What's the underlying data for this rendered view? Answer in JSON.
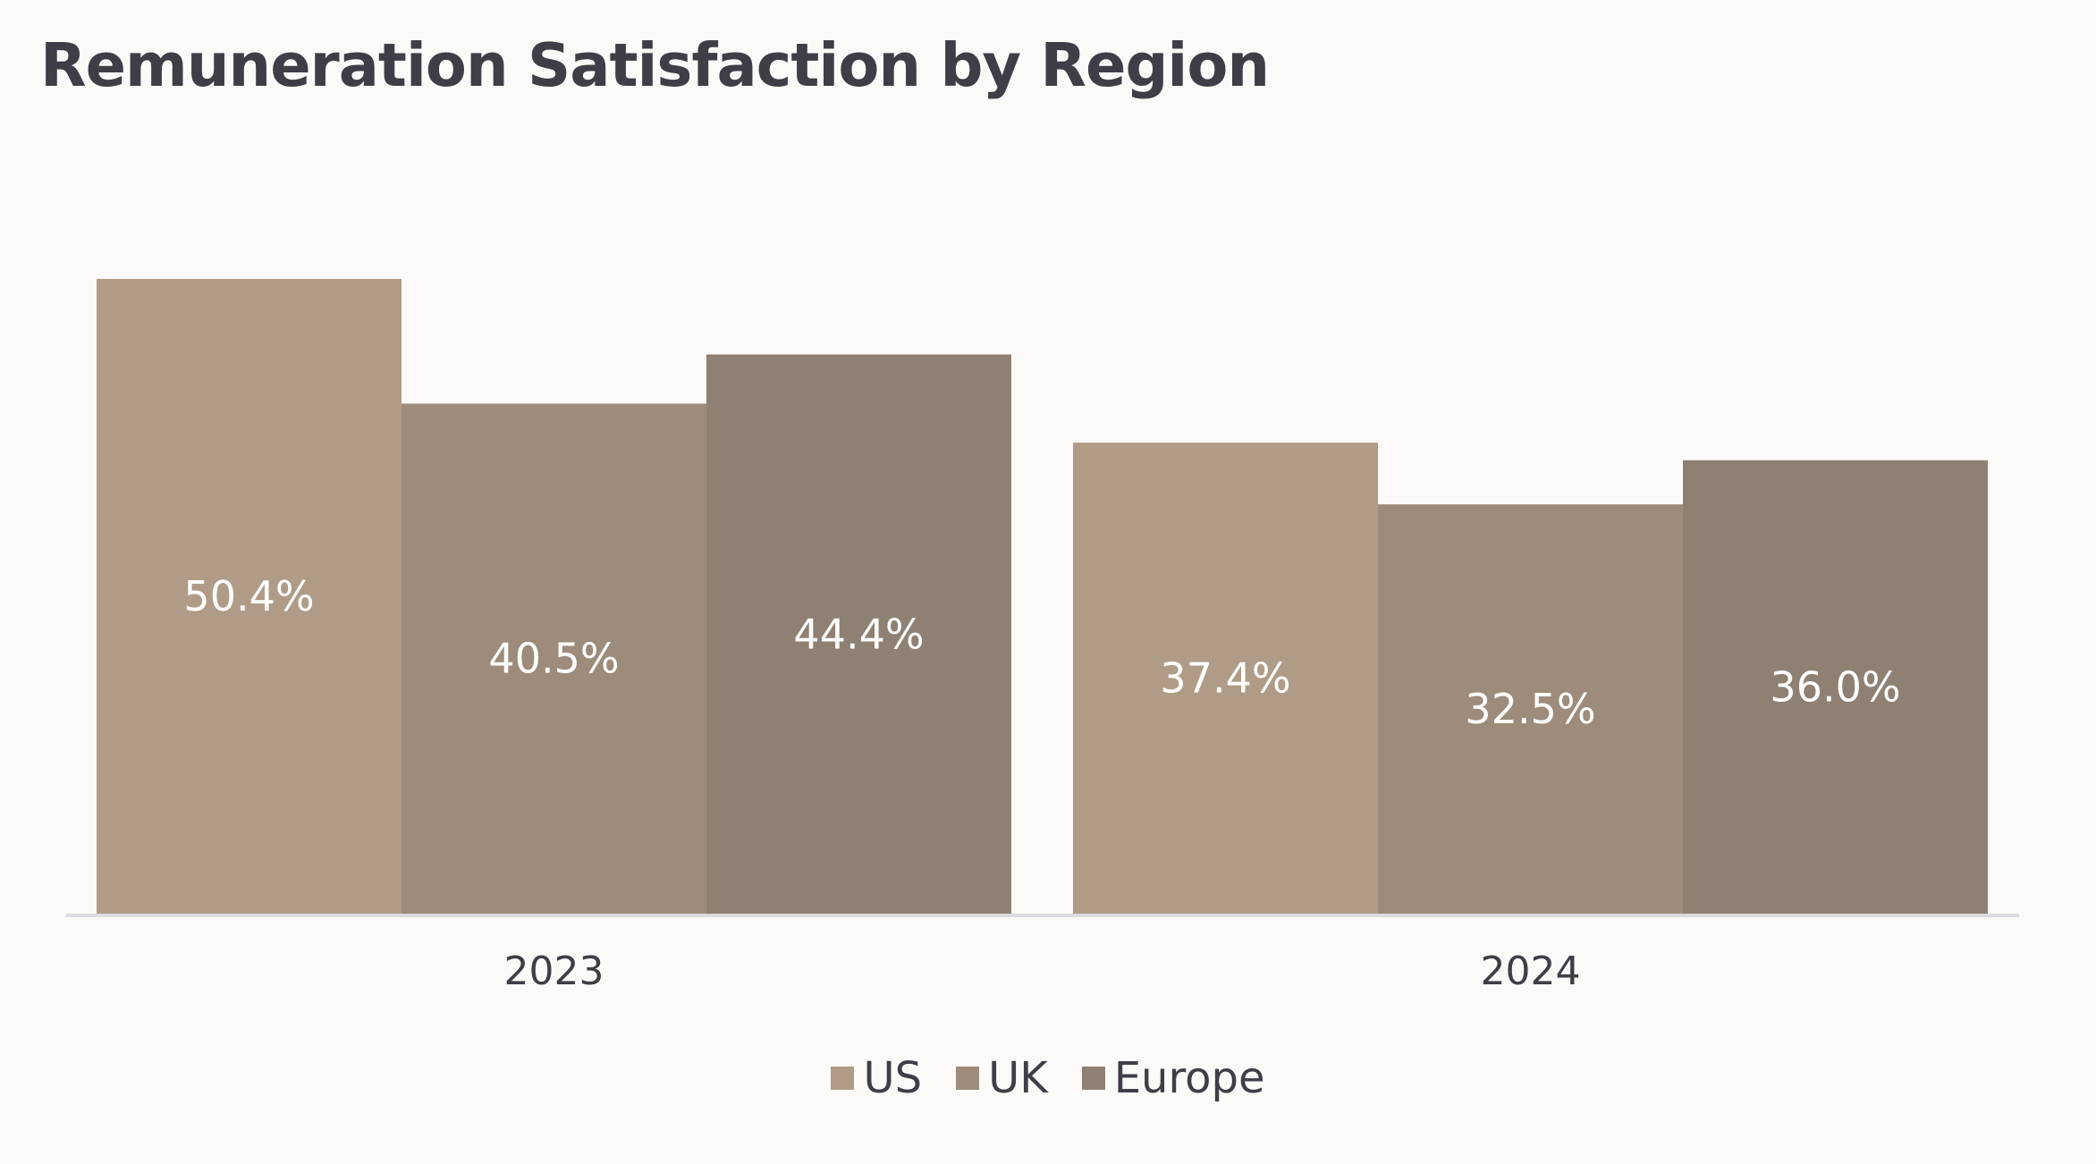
{
  "chart_data": {
    "type": "bar",
    "title": "Remuneration Satisfaction by Region",
    "categories": [
      "2023",
      "2024"
    ],
    "series": [
      {
        "name": "US",
        "values": [
          50.4,
          37.4
        ],
        "labels": [
          "50.4%",
          "37.4%"
        ],
        "color": "#b09c86"
      },
      {
        "name": "UK",
        "values": [
          40.5,
          32.5
        ],
        "labels": [
          "40.5%",
          "32.5%"
        ],
        "color": "#9d8c7b"
      },
      {
        "name": "Europe",
        "values": [
          44.4,
          36.0
        ],
        "labels": [
          "44.4%",
          "36.0%"
        ],
        "color": "#8e8173"
      }
    ],
    "ylim": [
      0,
      50.4
    ],
    "grid": false,
    "legend_position": "bottom",
    "colors": {
      "background": "#fbfaf8",
      "text": "#3f3e46",
      "data_label": "#ffffff",
      "baseline": "#dcdbe0"
    }
  }
}
